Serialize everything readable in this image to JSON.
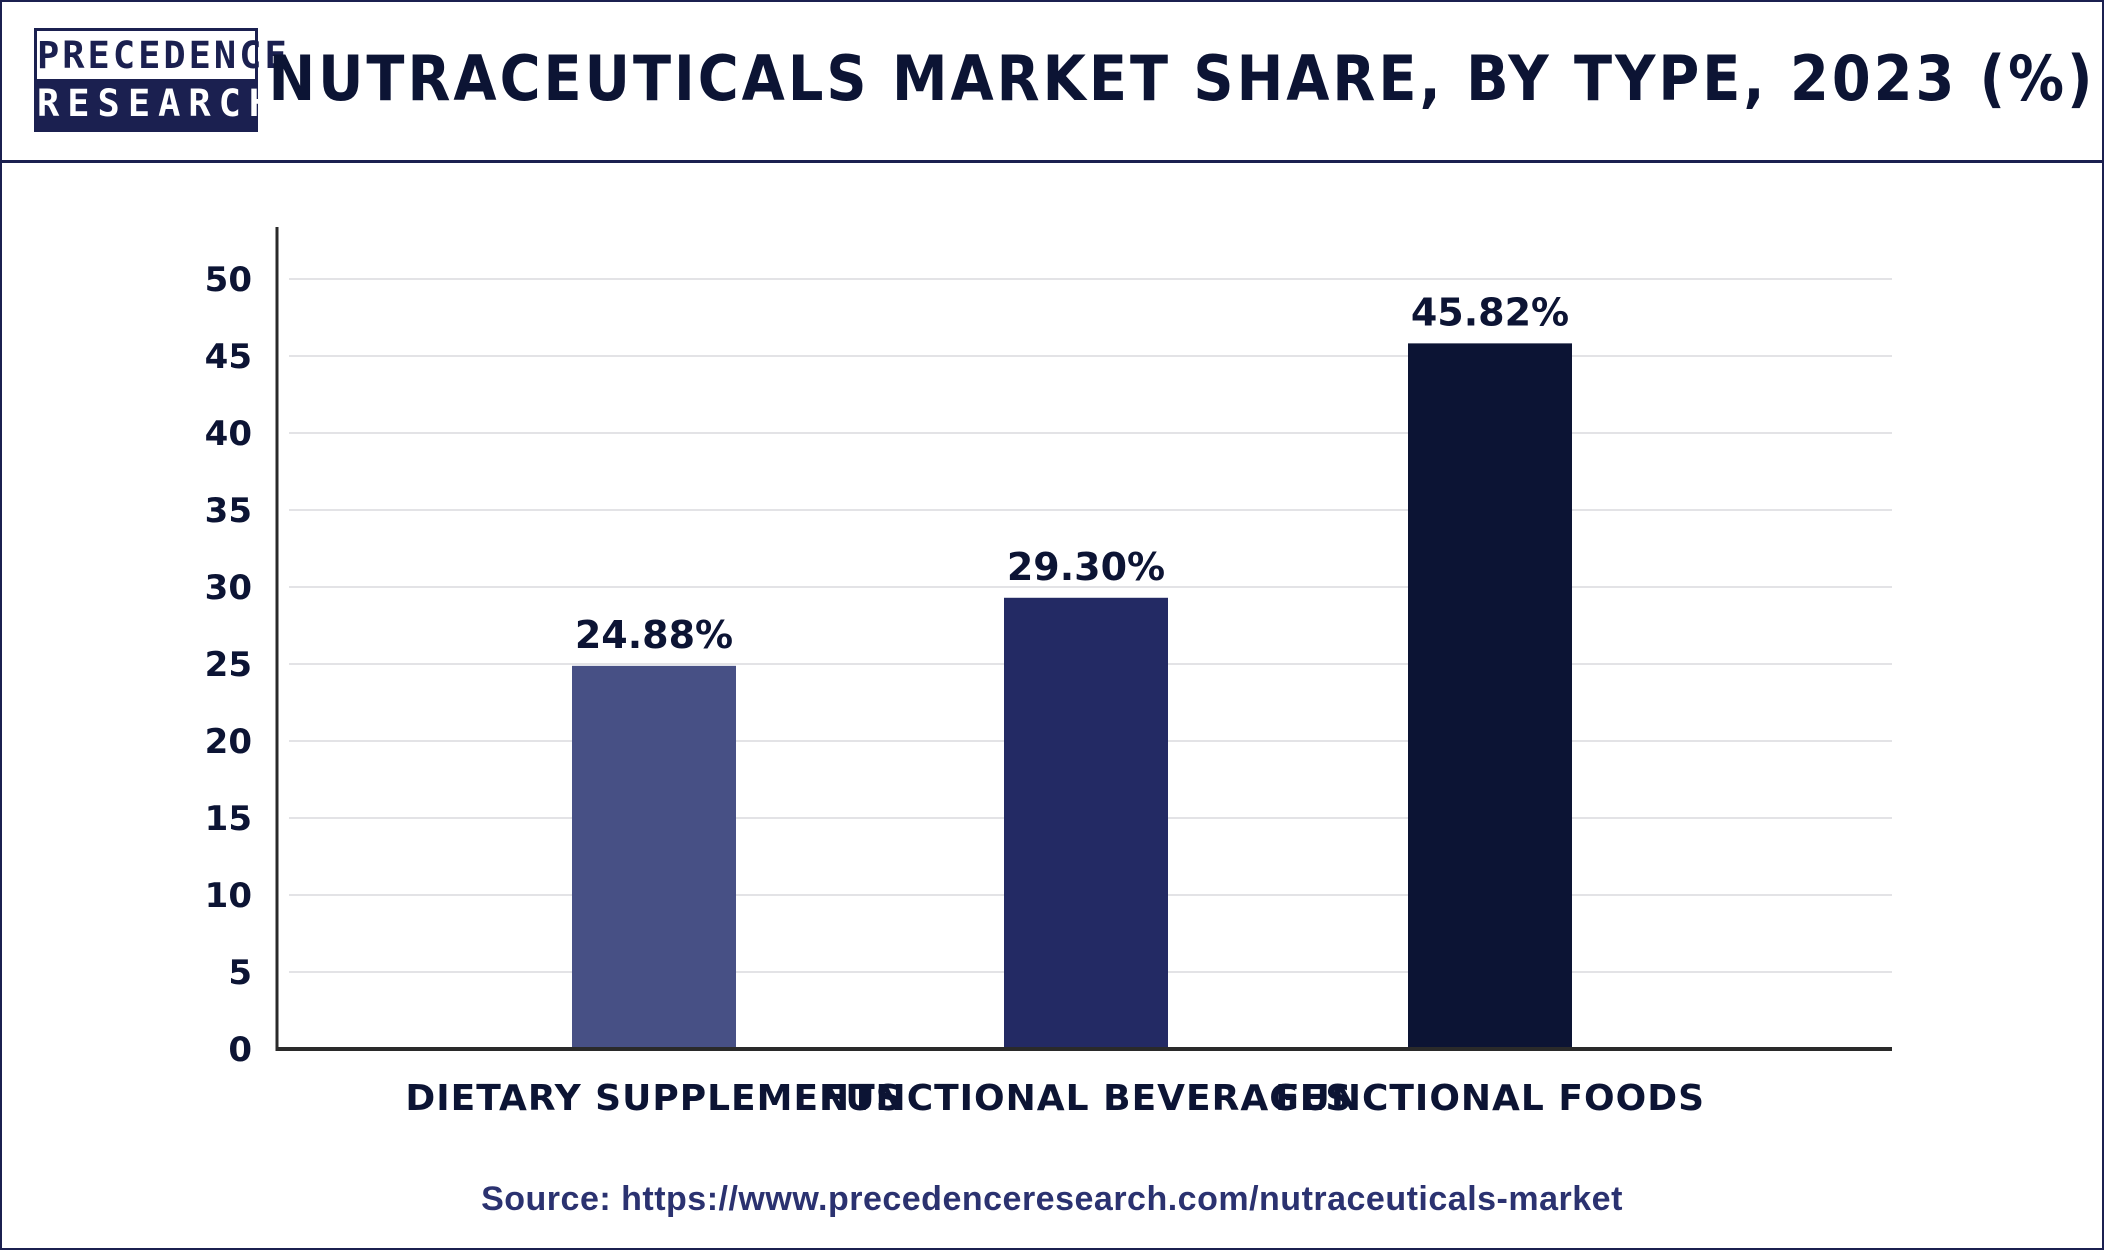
{
  "header": {
    "logo_top": "PRECEDENCE",
    "logo_bottom": "RESEARCH",
    "title": "NUTRACEUTICALS MARKET SHARE, BY TYPE, 2023 (%)"
  },
  "source": "Source: https://www.precedenceresearch.com/nutraceuticals-market",
  "chart_data": {
    "type": "bar",
    "title": "NUTRACEUTICALS MARKET SHARE, BY TYPE, 2023 (%)",
    "xlabel": "",
    "ylabel": "",
    "categories": [
      "DIETARY SUPPLEMENTS",
      "FUNCTIONAL BEVERAGES",
      "FUNCTIONAL FOODS"
    ],
    "values": [
      24.88,
      29.3,
      45.82
    ],
    "value_labels": [
      "24.88%",
      "29.30%",
      "45.82%"
    ],
    "bar_colors": [
      "#475085",
      "#232a64",
      "#0c1434"
    ],
    "ylim": [
      0,
      50
    ],
    "yticks": [
      0,
      5,
      10,
      15,
      20,
      25,
      30,
      35,
      40,
      45,
      50
    ],
    "grid": true,
    "legend": "none"
  }
}
